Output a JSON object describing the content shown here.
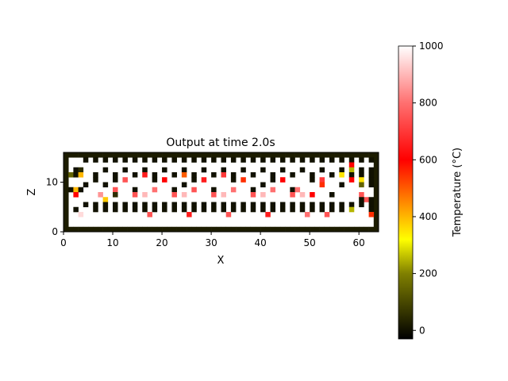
{
  "chart_data": {
    "type": "heatmap",
    "title": "Output at time 2.0s",
    "xlabel": "X",
    "ylabel": "Z",
    "xlim": [
      0,
      64
    ],
    "ylim": [
      0,
      16
    ],
    "x_ticks": [
      0,
      10,
      20,
      30,
      40,
      50,
      60
    ],
    "y_ticks": [
      0,
      10
    ],
    "grid": false,
    "nx": 64,
    "nz": 16,
    "background_value": 1000,
    "border_value": 20,
    "cells": [
      [
        4,
        14,
        0
      ],
      [
        6,
        14,
        0
      ],
      [
        8,
        14,
        0
      ],
      [
        10,
        14,
        0
      ],
      [
        12,
        14,
        0
      ],
      [
        14,
        14,
        0
      ],
      [
        16,
        14,
        0
      ],
      [
        18,
        14,
        0
      ],
      [
        20,
        14,
        0
      ],
      [
        22,
        14,
        0
      ],
      [
        24,
        14,
        0
      ],
      [
        26,
        14,
        0
      ],
      [
        28,
        14,
        0
      ],
      [
        30,
        14,
        0
      ],
      [
        32,
        14,
        0
      ],
      [
        34,
        14,
        0
      ],
      [
        36,
        14,
        0
      ],
      [
        38,
        14,
        0
      ],
      [
        40,
        14,
        0
      ],
      [
        42,
        14,
        0
      ],
      [
        44,
        14,
        0
      ],
      [
        46,
        14,
        0
      ],
      [
        48,
        14,
        0
      ],
      [
        50,
        14,
        0
      ],
      [
        52,
        14,
        0
      ],
      [
        54,
        14,
        0
      ],
      [
        56,
        14,
        0
      ],
      [
        58,
        14,
        0
      ],
      [
        60,
        14,
        0
      ],
      [
        62,
        14,
        0
      ],
      [
        58,
        13,
        600
      ],
      [
        58,
        12,
        250
      ],
      [
        2,
        12,
        0
      ],
      [
        3,
        12,
        50
      ],
      [
        8,
        12,
        0
      ],
      [
        12,
        12,
        0
      ],
      [
        16,
        12,
        0
      ],
      [
        20,
        12,
        0
      ],
      [
        24,
        12,
        0
      ],
      [
        28,
        12,
        0
      ],
      [
        32,
        12,
        0
      ],
      [
        36,
        12,
        0
      ],
      [
        40,
        12,
        0
      ],
      [
        44,
        12,
        0
      ],
      [
        48,
        12,
        0
      ],
      [
        52,
        12,
        0
      ],
      [
        56,
        12,
        0
      ],
      [
        60,
        12,
        0
      ],
      [
        62,
        12,
        0
      ],
      [
        1,
        11,
        150
      ],
      [
        2,
        11,
        0
      ],
      [
        3,
        11,
        400
      ],
      [
        6,
        11,
        0
      ],
      [
        10,
        11,
        0
      ],
      [
        14,
        11,
        0
      ],
      [
        16,
        11,
        650
      ],
      [
        18,
        11,
        0
      ],
      [
        22,
        11,
        0
      ],
      [
        24,
        11,
        500
      ],
      [
        26,
        11,
        0
      ],
      [
        30,
        11,
        0
      ],
      [
        32,
        11,
        700
      ],
      [
        34,
        11,
        0
      ],
      [
        38,
        11,
        0
      ],
      [
        42,
        11,
        0
      ],
      [
        46,
        11,
        0
      ],
      [
        50,
        11,
        0
      ],
      [
        54,
        11,
        0
      ],
      [
        56,
        11,
        350
      ],
      [
        58,
        11,
        0
      ],
      [
        60,
        11,
        0
      ],
      [
        62,
        11,
        0
      ],
      [
        6,
        10,
        0
      ],
      [
        10,
        10,
        0
      ],
      [
        12,
        10,
        750
      ],
      [
        18,
        10,
        0
      ],
      [
        20,
        10,
        600
      ],
      [
        26,
        10,
        0
      ],
      [
        28,
        10,
        650
      ],
      [
        34,
        10,
        0
      ],
      [
        36,
        10,
        550
      ],
      [
        42,
        10,
        0
      ],
      [
        44,
        10,
        600
      ],
      [
        50,
        10,
        0
      ],
      [
        52,
        10,
        700
      ],
      [
        58,
        10,
        600
      ],
      [
        60,
        10,
        350
      ],
      [
        62,
        10,
        0
      ],
      [
        4,
        9,
        0
      ],
      [
        8,
        9,
        0
      ],
      [
        24,
        9,
        0
      ],
      [
        40,
        9,
        0
      ],
      [
        52,
        9,
        550
      ],
      [
        56,
        9,
        0
      ],
      [
        60,
        9,
        150
      ],
      [
        62,
        9,
        0
      ],
      [
        1,
        8,
        0
      ],
      [
        2,
        8,
        400
      ],
      [
        3,
        8,
        0
      ],
      [
        10,
        8,
        750
      ],
      [
        14,
        8,
        0
      ],
      [
        18,
        8,
        800
      ],
      [
        22,
        8,
        0
      ],
      [
        26,
        8,
        750
      ],
      [
        30,
        8,
        0
      ],
      [
        34,
        8,
        800
      ],
      [
        38,
        8,
        0
      ],
      [
        42,
        8,
        800
      ],
      [
        46,
        8,
        0
      ],
      [
        47,
        8,
        800
      ],
      [
        2,
        7,
        600
      ],
      [
        7,
        7,
        850
      ],
      [
        10,
        7,
        50
      ],
      [
        14,
        7,
        750
      ],
      [
        16,
        7,
        900
      ],
      [
        22,
        7,
        750
      ],
      [
        24,
        7,
        900
      ],
      [
        30,
        7,
        750
      ],
      [
        32,
        7,
        900
      ],
      [
        38,
        7,
        750
      ],
      [
        40,
        7,
        900
      ],
      [
        46,
        7,
        750
      ],
      [
        48,
        7,
        900
      ],
      [
        50,
        7,
        600
      ],
      [
        54,
        7,
        0
      ],
      [
        60,
        7,
        750
      ],
      [
        8,
        6,
        380
      ],
      [
        61,
        6,
        750
      ],
      [
        60,
        6,
        0
      ],
      [
        62,
        6,
        0
      ],
      [
        4,
        5,
        0
      ],
      [
        6,
        5,
        0
      ],
      [
        8,
        5,
        0
      ],
      [
        10,
        5,
        0
      ],
      [
        12,
        5,
        0
      ],
      [
        14,
        5,
        0
      ],
      [
        16,
        5,
        0
      ],
      [
        18,
        5,
        0
      ],
      [
        20,
        5,
        0
      ],
      [
        22,
        5,
        0
      ],
      [
        24,
        5,
        0
      ],
      [
        26,
        5,
        0
      ],
      [
        28,
        5,
        0
      ],
      [
        30,
        5,
        0
      ],
      [
        32,
        5,
        0
      ],
      [
        34,
        5,
        0
      ],
      [
        36,
        5,
        0
      ],
      [
        38,
        5,
        0
      ],
      [
        40,
        5,
        0
      ],
      [
        42,
        5,
        0
      ],
      [
        44,
        5,
        0
      ],
      [
        46,
        5,
        0
      ],
      [
        48,
        5,
        0
      ],
      [
        50,
        5,
        0
      ],
      [
        52,
        5,
        0
      ],
      [
        54,
        5,
        0
      ],
      [
        56,
        5,
        0
      ],
      [
        58,
        5,
        0
      ],
      [
        60,
        5,
        0
      ],
      [
        62,
        5,
        0
      ],
      [
        2,
        4,
        0
      ],
      [
        6,
        4,
        0
      ],
      [
        8,
        4,
        0
      ],
      [
        10,
        4,
        0
      ],
      [
        12,
        4,
        0
      ],
      [
        14,
        4,
        0
      ],
      [
        16,
        4,
        0
      ],
      [
        18,
        4,
        0
      ],
      [
        20,
        4,
        0
      ],
      [
        22,
        4,
        0
      ],
      [
        24,
        4,
        0
      ],
      [
        26,
        4,
        0
      ],
      [
        28,
        4,
        0
      ],
      [
        30,
        4,
        0
      ],
      [
        32,
        4,
        0
      ],
      [
        34,
        4,
        0
      ],
      [
        36,
        4,
        0
      ],
      [
        38,
        4,
        0
      ],
      [
        40,
        4,
        0
      ],
      [
        42,
        4,
        0
      ],
      [
        44,
        4,
        0
      ],
      [
        46,
        4,
        0
      ],
      [
        48,
        4,
        0
      ],
      [
        50,
        4,
        0
      ],
      [
        52,
        4,
        0
      ],
      [
        54,
        4,
        0
      ],
      [
        56,
        4,
        0
      ],
      [
        58,
        4,
        250
      ],
      [
        62,
        4,
        0
      ],
      [
        3,
        3,
        950
      ],
      [
        17,
        3,
        750
      ],
      [
        25,
        3,
        650
      ],
      [
        33,
        3,
        750
      ],
      [
        41,
        3,
        650
      ],
      [
        49,
        3,
        800
      ],
      [
        53,
        3,
        750
      ],
      [
        62,
        3,
        550
      ]
    ],
    "colorbar": {
      "label": "Temperature (°C)",
      "vmin": -30,
      "vmax": 1000,
      "ticks": [
        0,
        200,
        400,
        600,
        800,
        1000
      ],
      "colormap": "hot",
      "stops": [
        {
          "v": -30,
          "color": "#000000"
        },
        {
          "v": 200,
          "color": "#808000"
        },
        {
          "v": 320,
          "color": "#ffff00"
        },
        {
          "v": 420,
          "color": "#ffa500"
        },
        {
          "v": 600,
          "color": "#ff0000"
        },
        {
          "v": 800,
          "color": "#ff7070"
        },
        {
          "v": 1000,
          "color": "#ffffff"
        }
      ]
    }
  }
}
